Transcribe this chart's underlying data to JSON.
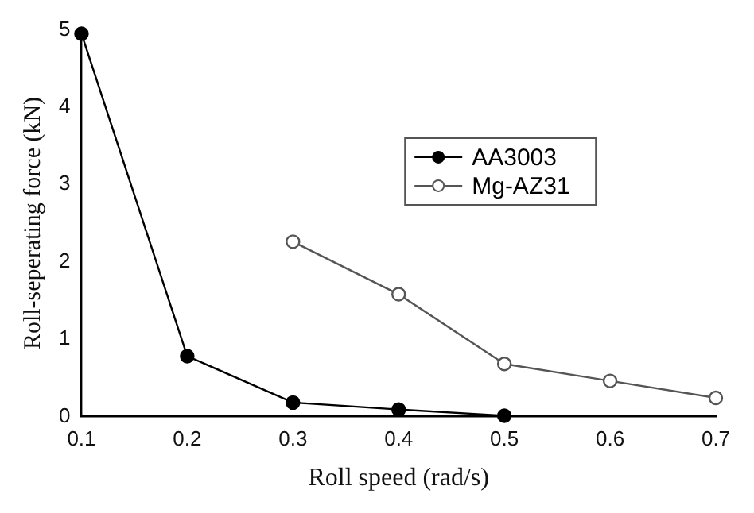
{
  "chart_data": {
    "type": "line",
    "xlabel": "Roll speed (rad/s)",
    "ylabel": "Roll-seperating force (kN)",
    "xlim": [
      0.1,
      0.7
    ],
    "xticks": [
      0.1,
      0.2,
      0.3,
      0.4,
      0.5,
      0.6,
      0.7
    ],
    "ylim": [
      0,
      5
    ],
    "yticks": [
      0,
      1,
      2,
      3,
      4,
      5
    ],
    "grid": false,
    "legend": "top right",
    "marker": "circle",
    "line_style": "solid",
    "series": [
      {
        "name": "AA3003",
        "color": "#000000",
        "x": [
          0.1,
          0.2,
          0.3,
          0.4,
          0.5
        ],
        "values": [
          4.95,
          0.78,
          0.18,
          0.09,
          0.01
        ]
      },
      {
        "name": "Mg-AZ31",
        "color": "#555555",
        "x": [
          0.3,
          0.4,
          0.5,
          0.6,
          0.7
        ],
        "values": [
          2.26,
          1.58,
          0.68,
          0.46,
          0.24
        ]
      }
    ]
  }
}
